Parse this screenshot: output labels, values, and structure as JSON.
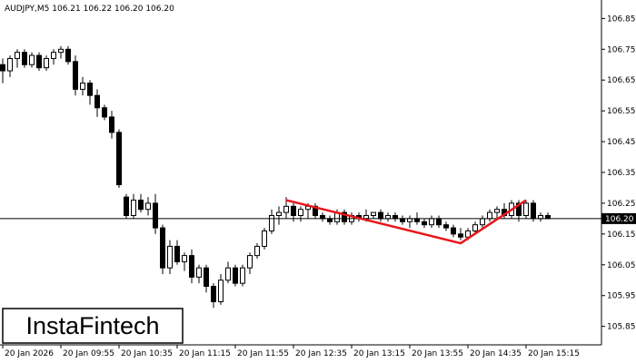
{
  "chart_data": {
    "type": "candlestick",
    "title": "AUDJPY,M5  106.21 106.22 106.20 106.20",
    "categories": [
      "20 Jan 2026",
      null,
      null,
      null,
      null,
      null,
      null,
      null,
      "20 Jan 09:55",
      null,
      null,
      null,
      null,
      null,
      null,
      null,
      "20 Jan 10:35",
      null,
      null,
      null,
      null,
      null,
      null,
      null,
      "20 Jan 11:15",
      null,
      null,
      null,
      null,
      null,
      null,
      null,
      "20 Jan 11:55",
      null,
      null,
      null,
      null,
      null,
      null,
      null,
      "20 Jan 12:35",
      null,
      null,
      null,
      null,
      null,
      null,
      null,
      "20 Jan 13:15",
      null,
      null,
      null,
      null,
      null,
      null,
      null,
      "20 Jan 13:55",
      null,
      null,
      null,
      null,
      null,
      null,
      null,
      "20 Jan 14:35",
      null,
      null,
      null,
      null,
      null,
      null,
      null,
      "20 Jan 15:15",
      null,
      null,
      null
    ],
    "open": [
      106.7,
      106.68,
      106.72,
      106.74,
      106.7,
      106.73,
      106.69,
      106.72,
      106.74,
      106.75,
      106.71,
      106.62,
      106.64,
      106.6,
      106.56,
      106.53,
      106.48,
      106.27,
      106.21,
      106.26,
      106.23,
      106.25,
      106.17,
      106.04,
      106.11,
      106.06,
      106.08,
      106.01,
      106.04,
      105.98,
      105.93,
      106.0,
      106.04,
      105.99,
      106.04,
      106.08,
      106.11,
      106.16,
      106.21,
      106.22,
      106.24,
      106.21,
      106.23,
      106.24,
      106.21,
      106.2,
      106.19,
      106.22,
      106.19,
      106.21,
      106.2,
      106.21,
      106.22,
      106.2,
      106.21,
      106.2,
      106.19,
      106.2,
      106.19,
      106.18,
      106.2,
      106.18,
      106.17,
      106.15,
      106.14,
      106.16,
      106.18,
      106.2,
      106.22,
      106.23,
      106.21,
      106.25,
      106.21,
      106.25,
      106.2,
      106.21
    ],
    "high": [
      106.72,
      106.73,
      106.75,
      106.75,
      106.74,
      106.74,
      106.73,
      106.75,
      106.76,
      106.76,
      106.73,
      106.66,
      106.65,
      106.62,
      106.57,
      106.55,
      106.49,
      106.28,
      106.28,
      106.28,
      106.27,
      106.28,
      106.18,
      106.13,
      106.13,
      106.09,
      106.1,
      106.05,
      106.05,
      105.99,
      106.02,
      106.06,
      106.05,
      106.05,
      106.09,
      106.12,
      106.17,
      106.23,
      106.24,
      106.27,
      106.25,
      106.24,
      106.25,
      106.25,
      106.22,
      106.21,
      106.23,
      106.23,
      106.22,
      106.22,
      106.23,
      106.22,
      106.23,
      106.22,
      106.22,
      106.21,
      106.21,
      106.22,
      106.2,
      106.21,
      106.21,
      106.19,
      106.18,
      106.17,
      106.17,
      106.19,
      106.21,
      106.23,
      106.24,
      106.25,
      106.26,
      106.26,
      106.26,
      106.26,
      106.22,
      106.22
    ],
    "low": [
      106.64,
      106.66,
      106.69,
      106.69,
      106.69,
      106.68,
      106.68,
      106.7,
      106.72,
      106.7,
      106.6,
      106.6,
      106.57,
      106.53,
      106.52,
      106.46,
      106.3,
      106.2,
      106.2,
      106.22,
      106.21,
      106.15,
      106.02,
      106.02,
      106.05,
      106.03,
      105.99,
      105.99,
      105.96,
      105.91,
      105.92,
      105.99,
      105.98,
      105.98,
      106.02,
      106.07,
      106.1,
      106.15,
      106.18,
      106.2,
      106.19,
      106.19,
      106.2,
      106.2,
      106.19,
      106.18,
      106.18,
      106.18,
      106.18,
      106.19,
      106.19,
      106.2,
      106.19,
      106.19,
      106.19,
      106.18,
      106.17,
      106.18,
      106.17,
      106.17,
      106.17,
      106.16,
      106.14,
      106.13,
      106.13,
      106.15,
      106.17,
      106.19,
      106.2,
      106.2,
      106.2,
      106.19,
      106.2,
      106.19,
      106.19,
      106.2
    ],
    "close": [
      106.68,
      106.72,
      106.74,
      106.7,
      106.73,
      106.69,
      106.72,
      106.74,
      106.75,
      106.71,
      106.62,
      106.64,
      106.6,
      106.56,
      106.53,
      106.48,
      106.31,
      106.21,
      106.26,
      106.23,
      106.25,
      106.17,
      106.04,
      106.11,
      106.06,
      106.08,
      106.01,
      106.04,
      105.98,
      105.93,
      106.0,
      106.04,
      105.99,
      106.04,
      106.08,
      106.11,
      106.16,
      106.21,
      106.22,
      106.24,
      106.21,
      106.23,
      106.24,
      106.21,
      106.2,
      106.19,
      106.22,
      106.19,
      106.21,
      106.2,
      106.21,
      106.22,
      106.2,
      106.21,
      106.2,
      106.19,
      106.2,
      106.19,
      106.18,
      106.2,
      106.18,
      106.17,
      106.15,
      106.14,
      106.16,
      106.18,
      106.2,
      106.22,
      106.23,
      106.21,
      106.25,
      106.21,
      106.25,
      106.2,
      106.21,
      106.2
    ],
    "up_color": "#ffffff",
    "down_color": "#000000",
    "ylim": [
      105.79,
      106.91
    ],
    "yticks": [
      106.85,
      106.75,
      106.65,
      106.55,
      106.45,
      106.35,
      106.25,
      106.15,
      106.05,
      105.95,
      105.85
    ],
    "price_line": {
      "value": 106.2,
      "label": "106.20"
    },
    "pattern": {
      "color": "#e8141a",
      "points": [
        {
          "x": 39,
          "value": 106.26
        },
        {
          "x": 63,
          "value": 106.12
        },
        {
          "x": 72,
          "value": 106.26
        }
      ]
    }
  },
  "logo": "InstaFintech"
}
